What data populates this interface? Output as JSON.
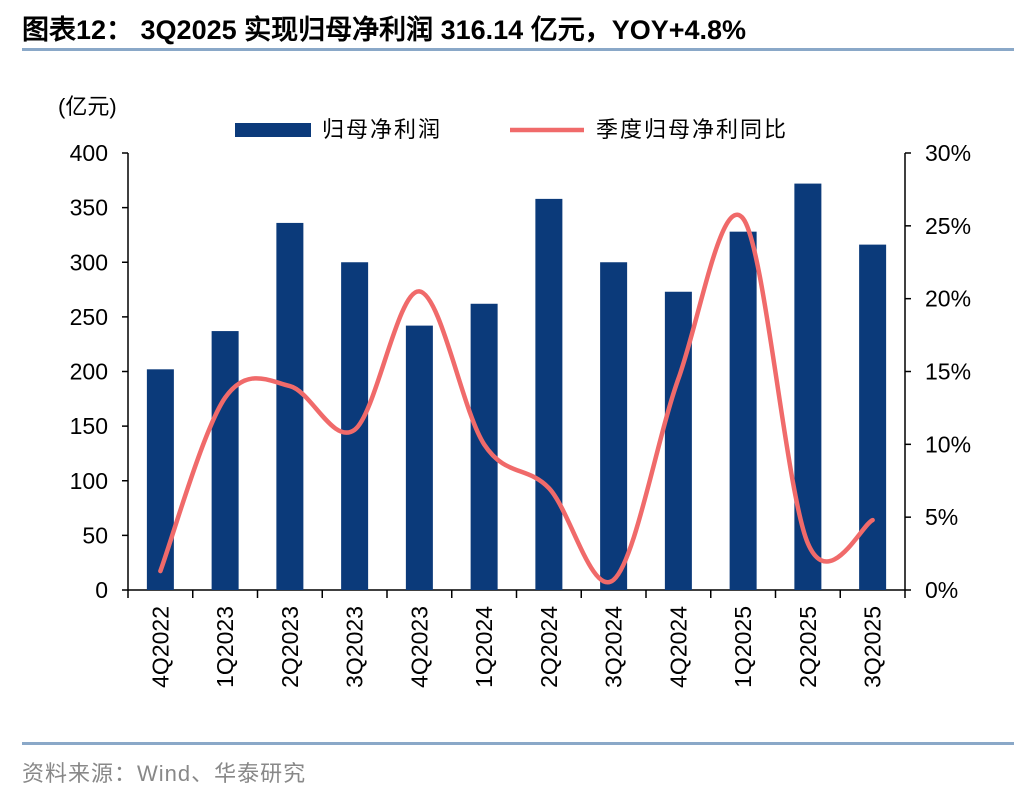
{
  "title": "图表12：  3Q2025 实现归母净利润 316.14 亿元，YOY+4.8%",
  "source": "资料来源：Wind、华泰研究",
  "colors": {
    "bar": "#0b3a7a",
    "line": "#f06a6a",
    "rule": "#8aa8c8"
  },
  "chart_data": {
    "type": "bar",
    "categories": [
      "4Q2022",
      "1Q2023",
      "2Q2023",
      "3Q2023",
      "4Q2023",
      "1Q2024",
      "2Q2024",
      "3Q2024",
      "4Q2024",
      "1Q2025",
      "2Q2025",
      "3Q2025"
    ],
    "series": [
      {
        "name": "归母净利润",
        "type": "bar",
        "axis": "left",
        "values": [
          202,
          237,
          336,
          300,
          242,
          262,
          358,
          300,
          273,
          328,
          372,
          316.14
        ]
      },
      {
        "name": "季度归母净利同比",
        "type": "line",
        "axis": "right",
        "unit": "%",
        "values": [
          1.3,
          13.2,
          14.0,
          11.0,
          20.5,
          10.0,
          7.0,
          0.7,
          14.5,
          25.5,
          3.2,
          4.8
        ]
      }
    ],
    "ylabel": "(亿元)",
    "ylim": [
      0,
      400
    ],
    "yticks": [
      "0",
      "50",
      "100",
      "150",
      "200",
      "250",
      "300",
      "350",
      "400"
    ],
    "y2lim": [
      0,
      30
    ],
    "y2ticks": [
      "0%",
      "5%",
      "10%",
      "15%",
      "20%",
      "25%",
      "30%"
    ],
    "grid": false,
    "legend_position": "top"
  }
}
